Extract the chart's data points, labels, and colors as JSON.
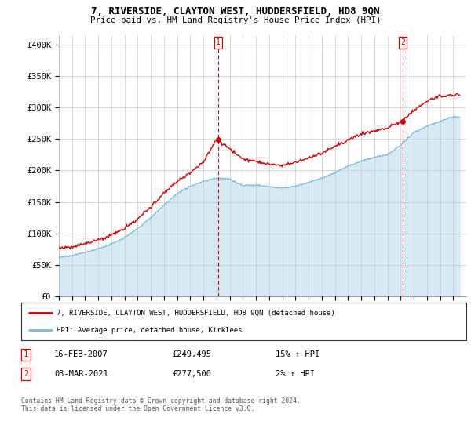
{
  "title": "7, RIVERSIDE, CLAYTON WEST, HUDDERSFIELD, HD8 9QN",
  "subtitle": "Price paid vs. HM Land Registry's House Price Index (HPI)",
  "ylabel_ticks": [
    "£0",
    "£50K",
    "£100K",
    "£150K",
    "£200K",
    "£250K",
    "£300K",
    "£350K",
    "£400K"
  ],
  "ytick_values": [
    0,
    50000,
    100000,
    150000,
    200000,
    250000,
    300000,
    350000,
    400000
  ],
  "ylim": [
    0,
    415000
  ],
  "hpi_color": "#7ab8d8",
  "hpi_fill_color": "#d6eaf5",
  "price_color": "#cc0000",
  "vline_color": "#cc0000",
  "marker1_year": 2007.12,
  "marker2_year": 2021.17,
  "marker1_price": 249495,
  "marker2_price": 277500,
  "legend_line1": "7, RIVERSIDE, CLAYTON WEST, HUDDERSFIELD, HD8 9QN (detached house)",
  "legend_line2": "HPI: Average price, detached house, Kirklees",
  "table_row1_num": "1",
  "table_row1_date": "16-FEB-2007",
  "table_row1_price": "£249,495",
  "table_row1_hpi": "15% ↑ HPI",
  "table_row2_num": "2",
  "table_row2_date": "03-MAR-2021",
  "table_row2_price": "£277,500",
  "table_row2_hpi": "2% ↑ HPI",
  "footer": "Contains HM Land Registry data © Crown copyright and database right 2024.\nThis data is licensed under the Open Government Licence v3.0.",
  "background_color": "#ffffff",
  "hpi_base_years": [
    1995,
    1996,
    1997,
    1998,
    1999,
    2000,
    2001,
    2002,
    2003,
    2004,
    2005,
    2006,
    2007,
    2008,
    2009,
    2010,
    2011,
    2012,
    2013,
    2014,
    2015,
    2016,
    2017,
    2018,
    2019,
    2020,
    2021,
    2022,
    2023,
    2024,
    2025
  ],
  "hpi_base_vals": [
    62000,
    65000,
    70000,
    76000,
    83000,
    93000,
    108000,
    125000,
    145000,
    163000,
    175000,
    183000,
    188000,
    186000,
    176000,
    177000,
    174000,
    172000,
    175000,
    181000,
    188000,
    196000,
    207000,
    215000,
    221000,
    225000,
    240000,
    260000,
    270000,
    278000,
    285000
  ],
  "price_base_years": [
    1995,
    1996,
    1997,
    1998,
    1999,
    2000,
    2001,
    2002,
    2003,
    2004,
    2005,
    2006,
    2007,
    2008,
    2009,
    2010,
    2011,
    2012,
    2013,
    2014,
    2015,
    2016,
    2017,
    2018,
    2019,
    2020,
    2021,
    2022,
    2023,
    2024,
    2025
  ],
  "price_base_vals": [
    77000,
    79000,
    84000,
    90000,
    97000,
    108000,
    123000,
    142000,
    164000,
    183000,
    197000,
    213000,
    249495,
    235000,
    218000,
    215000,
    210000,
    208000,
    213000,
    220000,
    228000,
    238000,
    248000,
    258000,
    263000,
    268000,
    277500,
    295000,
    310000,
    318000,
    320000
  ]
}
